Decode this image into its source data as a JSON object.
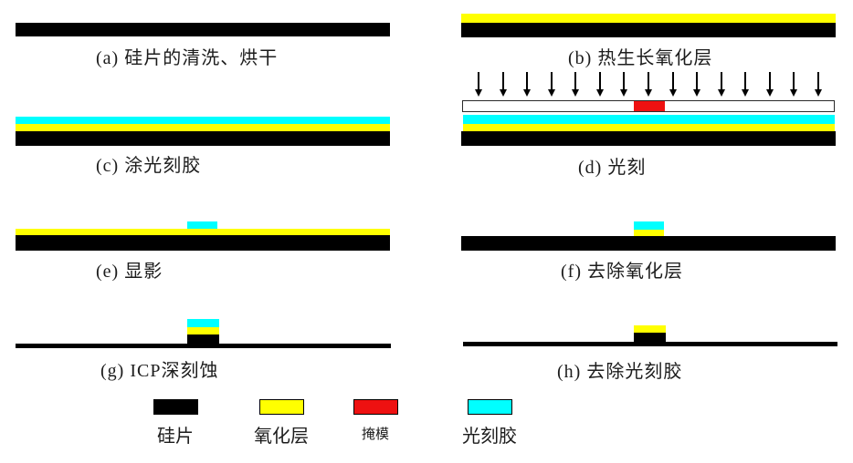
{
  "colors": {
    "silicon": "#000000",
    "oxide": "#ffff00",
    "mask": "#ee1111",
    "photoresist": "#00ffff"
  },
  "panels": [
    {
      "id": "a",
      "label": "(a) 硅片的清洗、烘干"
    },
    {
      "id": "b",
      "label": "(b) 热生长氧化层"
    },
    {
      "id": "c",
      "label": "(c) 涂光刻胶"
    },
    {
      "id": "d",
      "label": "(d) 光刻",
      "exposure_arrow_count": 15
    },
    {
      "id": "e",
      "label": "(e) 显影"
    },
    {
      "id": "f",
      "label": "(f) 去除氧化层"
    },
    {
      "id": "g",
      "label": "(g) ICP深刻蚀"
    },
    {
      "id": "h",
      "label": "(h) 去除光刻胶"
    }
  ],
  "legend": {
    "items": [
      {
        "label": "硅片",
        "color": "#000000"
      },
      {
        "label": "氧化层",
        "color": "#ffff00"
      },
      {
        "label": "掩模",
        "color": "#ee1111"
      },
      {
        "label": "光刻胶",
        "color": "#00ffff"
      }
    ]
  }
}
